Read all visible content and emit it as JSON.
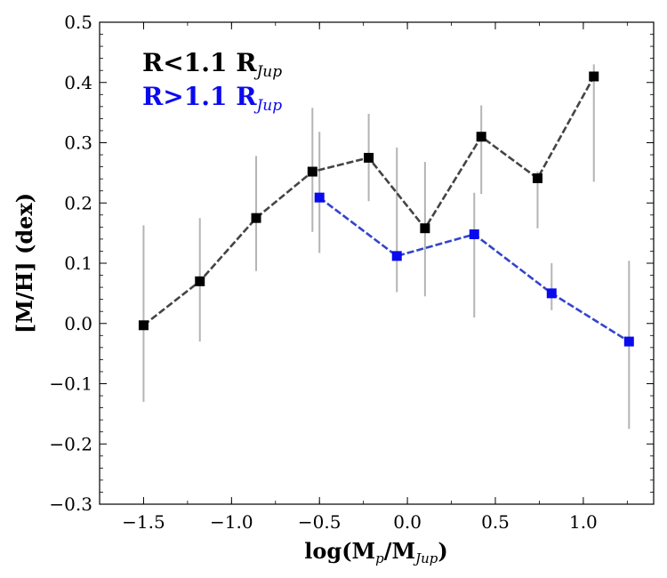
{
  "chart_data": {
    "type": "line",
    "xlabel": "log(M_p/M_Jup)",
    "xlabel_parts": {
      "main": "log(M",
      "sub1": "p",
      "mid": "/M",
      "sub2": "Jup",
      "end": ")"
    },
    "ylabel": "[M/H] (dex)",
    "xlim": [
      -1.75,
      1.4
    ],
    "ylim": [
      -0.3,
      0.5
    ],
    "xticks": [
      -1.5,
      -1.0,
      -0.5,
      0.0,
      0.5,
      1.0
    ],
    "xtick_labels": [
      "−1.5",
      "−1.0",
      "−0.5",
      "0.0",
      "0.5",
      "1.0"
    ],
    "yticks": [
      -0.3,
      -0.2,
      -0.1,
      0.0,
      0.1,
      0.2,
      0.3,
      0.4,
      0.5
    ],
    "ytick_labels": [
      "−0.3",
      "−0.2",
      "−0.1",
      "0.0",
      "0.1",
      "0.2",
      "0.3",
      "0.4",
      "0.5"
    ],
    "grid": false,
    "legend_position": "top-left",
    "series": [
      {
        "name": "R<1.1 R_Jup",
        "legend_main": "R<1.1 R",
        "legend_sub": "Jup",
        "color": "#000000",
        "line_color": "#444444",
        "x": [
          -1.5,
          -1.18,
          -0.86,
          -0.54,
          -0.22,
          0.1,
          0.42,
          0.74,
          1.06
        ],
        "y": [
          -0.003,
          0.07,
          0.175,
          0.252,
          0.275,
          0.158,
          0.31,
          0.241,
          0.41
        ],
        "err_low": [
          -0.13,
          -0.03,
          0.087,
          0.152,
          0.203,
          0.045,
          0.215,
          0.158,
          0.235
        ],
        "err_high": [
          0.163,
          0.175,
          0.278,
          0.358,
          0.348,
          0.268,
          0.362,
          0.252,
          0.43
        ]
      },
      {
        "name": "R>1.1 R_Jup",
        "legend_main": "R>1.1 R",
        "legend_sub": "Jup",
        "color": "#0a0aee",
        "line_color": "#3344cc",
        "x": [
          -0.5,
          -0.06,
          0.38,
          0.82,
          1.26
        ],
        "y": [
          0.209,
          0.112,
          0.148,
          0.05,
          -0.03
        ],
        "err_low": [
          0.117,
          0.052,
          0.01,
          0.022,
          -0.175
        ],
        "err_high": [
          0.318,
          0.292,
          0.217,
          0.1,
          0.104
        ]
      }
    ]
  }
}
